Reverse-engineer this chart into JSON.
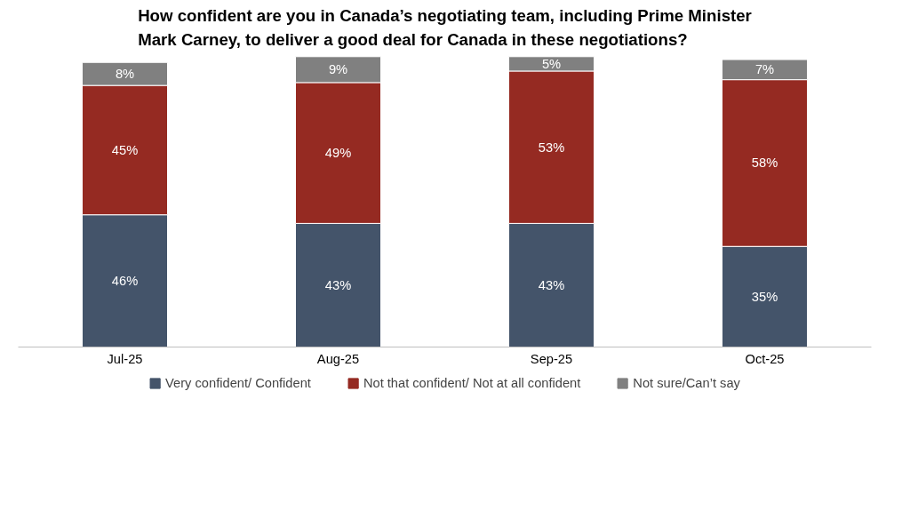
{
  "chart_data": {
    "type": "bar",
    "title": "How confident are you in Canada’s negotiating team, including Prime Minister Mark Carney, to deliver a good deal for Canada in these negotiations?",
    "categories": [
      "Jul-25",
      "Aug-25",
      "Sep-25",
      "Oct-25"
    ],
    "stacked": true,
    "legend": "bottom",
    "series": [
      {
        "name": "Very confident/ Confident",
        "color": "#44546a",
        "values": [
          46,
          43,
          43,
          35
        ],
        "value_labels": [
          "46%",
          "43%",
          "43%",
          "35%"
        ]
      },
      {
        "name": "Not that confident/ Not at all confident",
        "color": "#952a22",
        "values": [
          45,
          49,
          53,
          58
        ],
        "value_labels": [
          "45%",
          "49%",
          "53%",
          "58%"
        ]
      },
      {
        "name": "Not sure/Can’t say",
        "color": "#808080",
        "values": [
          8,
          9,
          5,
          7
        ],
        "value_labels": [
          "8%",
          "9%",
          "5%",
          "7%"
        ]
      }
    ]
  }
}
